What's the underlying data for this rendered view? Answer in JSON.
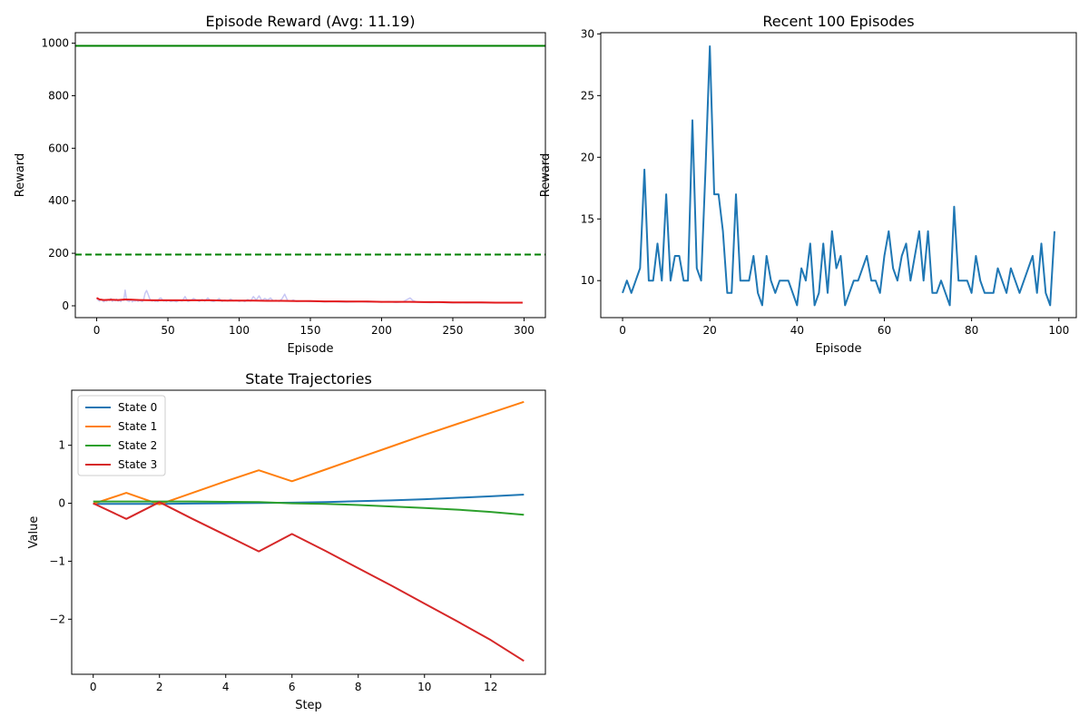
{
  "chart_data": [
    {
      "type": "line",
      "title": "Episode Reward (Avg: 11.19)",
      "xlabel": "Episode",
      "ylabel": "Reward",
      "xlim": [
        -15,
        315
      ],
      "ylim": [
        -45,
        1040
      ],
      "xticks": [
        0,
        50,
        100,
        150,
        200,
        250,
        300
      ],
      "yticks": [
        0,
        200,
        400,
        600,
        800,
        1000
      ],
      "reference_lines": [
        {
          "y": 990,
          "color": "#008000",
          "style": "solid"
        },
        {
          "y": 195,
          "color": "#008000",
          "style": "dashed"
        }
      ],
      "series": [
        {
          "color": "#c8c8f5",
          "x": [
            0,
            1,
            2,
            3,
            4,
            5,
            6,
            7,
            8,
            9,
            10,
            11,
            12,
            13,
            14,
            15,
            16,
            17,
            18,
            19,
            20,
            21,
            22,
            23,
            24,
            25,
            26,
            27,
            28,
            29,
            30,
            31,
            32,
            33,
            34,
            35,
            36,
            37,
            38,
            39,
            40,
            41,
            42,
            43,
            44,
            45,
            46,
            47,
            48,
            49,
            50,
            52,
            54,
            56,
            58,
            60,
            62,
            64,
            66,
            68,
            70,
            72,
            74,
            76,
            78,
            80,
            82,
            84,
            86,
            88,
            90,
            92,
            94,
            96,
            98,
            100,
            102,
            104,
            106,
            108,
            110,
            112,
            114,
            116,
            118,
            120,
            122,
            124,
            126,
            128,
            130,
            132,
            134,
            136,
            138,
            140,
            145,
            150,
            155,
            160,
            165,
            170,
            175,
            180,
            185,
            190,
            195,
            200,
            205,
            210,
            215,
            218,
            220,
            222,
            225,
            230,
            235,
            240,
            245,
            250,
            255,
            260,
            265,
            270,
            275,
            280,
            285,
            290,
            295,
            299
          ],
          "y": [
            30,
            22,
            18,
            25,
            20,
            15,
            22,
            18,
            24,
            20,
            28,
            17,
            22,
            19,
            26,
            18,
            21,
            16,
            24,
            20,
            60,
            22,
            18,
            17,
            25,
            15,
            20,
            18,
            22,
            17,
            21,
            19,
            16,
            24,
            48,
            58,
            45,
            30,
            20,
            18,
            22,
            17,
            19,
            16,
            28,
            30,
            24,
            18,
            20,
            17,
            22,
            16,
            19,
            15,
            21,
            18,
            35,
            17,
            20,
            28,
            22,
            17,
            24,
            18,
            30,
            19,
            16,
            20,
            28,
            17,
            22,
            18,
            26,
            19,
            21,
            17,
            20,
            16,
            24,
            18,
            35,
            22,
            38,
            20,
            28,
            22,
            30,
            19,
            21,
            17,
            26,
            44,
            20,
            18,
            22,
            17,
            18,
            16,
            17,
            15,
            16,
            15,
            14,
            15,
            16,
            14,
            15,
            14,
            16,
            13,
            15,
            24,
            30,
            20,
            14,
            13,
            12,
            13,
            12,
            11,
            12,
            11,
            12,
            11,
            12,
            11,
            11,
            12,
            11,
            11
          ]
        },
        {
          "color": "#e31a1c",
          "x": [
            0,
            2,
            5,
            10,
            15,
            20,
            25,
            30,
            40,
            50,
            60,
            70,
            80,
            90,
            100,
            110,
            120,
            130,
            140,
            150,
            160,
            170,
            180,
            190,
            200,
            210,
            220,
            230,
            240,
            250,
            260,
            270,
            280,
            290,
            299
          ],
          "y": [
            30,
            24,
            22,
            23,
            22,
            24,
            23,
            22,
            21,
            21,
            21,
            21,
            21,
            20,
            20,
            20,
            19,
            19,
            18,
            18,
            17,
            17,
            16,
            16,
            15,
            15,
            15,
            14,
            14,
            13,
            13,
            13,
            12,
            12,
            12
          ]
        }
      ]
    },
    {
      "type": "line",
      "title": "Recent 100 Episodes",
      "xlabel": "Episode",
      "ylabel": "Reward",
      "xlim": [
        -5,
        104
      ],
      "ylim": [
        7.0,
        30.1
      ],
      "xticks": [
        0,
        20,
        40,
        60,
        80,
        100
      ],
      "yticks": [
        10,
        15,
        20,
        25,
        30
      ],
      "series": [
        {
          "color": "#1f77b4",
          "x": [
            0,
            1,
            2,
            3,
            4,
            5,
            6,
            7,
            8,
            9,
            10,
            11,
            12,
            13,
            14,
            15,
            16,
            17,
            18,
            19,
            20,
            21,
            22,
            23,
            24,
            25,
            26,
            27,
            28,
            29,
            30,
            31,
            32,
            33,
            34,
            35,
            36,
            37,
            38,
            39,
            40,
            41,
            42,
            43,
            44,
            45,
            46,
            47,
            48,
            49,
            50,
            51,
            52,
            53,
            54,
            55,
            56,
            57,
            58,
            59,
            60,
            61,
            62,
            63,
            64,
            65,
            66,
            67,
            68,
            69,
            70,
            71,
            72,
            73,
            74,
            75,
            76,
            77,
            78,
            79,
            80,
            81,
            82,
            83,
            84,
            85,
            86,
            87,
            88,
            89,
            90,
            91,
            92,
            93,
            94,
            95,
            96,
            97,
            98,
            99
          ],
          "y": [
            9,
            10,
            9,
            10,
            11,
            19,
            10,
            10,
            13,
            10,
            17,
            10,
            12,
            12,
            10,
            10,
            23,
            11,
            10,
            19,
            29,
            17,
            17,
            14,
            9,
            9,
            17,
            10,
            10,
            10,
            12,
            9,
            8,
            12,
            10,
            9,
            10,
            10,
            10,
            9,
            8,
            11,
            10,
            13,
            8,
            9,
            13,
            9,
            14,
            11,
            12,
            8,
            9,
            10,
            10,
            11,
            12,
            10,
            10,
            9,
            12,
            14,
            11,
            10,
            12,
            13,
            10,
            12,
            14,
            10,
            14,
            9,
            9,
            10,
            9,
            8,
            16,
            10,
            10,
            10,
            9,
            12,
            10,
            9,
            9,
            9,
            11,
            10,
            9,
            11,
            10,
            9,
            10,
            11,
            12,
            9,
            13,
            9,
            8,
            14
          ]
        }
      ]
    },
    {
      "type": "line",
      "title": "State Trajectories",
      "xlabel": "Step",
      "ylabel": "Value",
      "xlim": [
        -0.65,
        13.65
      ],
      "ylim": [
        -2.95,
        1.95
      ],
      "xticks": [
        0,
        2,
        4,
        6,
        8,
        10,
        12
      ],
      "yticks": [
        -2,
        -1,
        0,
        1
      ],
      "legend": "upper-left",
      "series": [
        {
          "name": "State 0",
          "color": "#1f77b4",
          "x": [
            0,
            1,
            2,
            3,
            4,
            5,
            6,
            7,
            8,
            9,
            10,
            11,
            12,
            13
          ],
          "y": [
            -0.01,
            -0.01,
            -0.01,
            -0.005,
            0.0,
            0.005,
            0.01,
            0.02,
            0.035,
            0.05,
            0.07,
            0.095,
            0.12,
            0.15
          ]
        },
        {
          "name": "State 1",
          "color": "#ff7f0e",
          "x": [
            0,
            1,
            2,
            3,
            4,
            5,
            6,
            7,
            8,
            9,
            10,
            11,
            12,
            13
          ],
          "y": [
            -0.01,
            0.18,
            -0.02,
            0.18,
            0.38,
            0.57,
            0.38,
            0.58,
            0.78,
            0.98,
            1.18,
            1.37,
            1.56,
            1.75
          ]
        },
        {
          "name": "State 2",
          "color": "#2ca02c",
          "x": [
            0,
            1,
            2,
            3,
            4,
            5,
            6,
            7,
            8,
            9,
            10,
            11,
            12,
            13
          ],
          "y": [
            0.03,
            0.03,
            0.03,
            0.03,
            0.025,
            0.02,
            0.0,
            -0.01,
            -0.03,
            -0.055,
            -0.08,
            -0.11,
            -0.15,
            -0.2
          ]
        },
        {
          "name": "State 3",
          "color": "#d62728",
          "x": [
            0,
            1,
            2,
            3,
            4,
            5,
            6,
            7,
            8,
            9,
            10,
            11,
            12,
            13
          ],
          "y": [
            0.0,
            -0.27,
            0.02,
            -0.27,
            -0.55,
            -0.83,
            -0.53,
            -0.82,
            -1.12,
            -1.42,
            -1.73,
            -2.04,
            -2.36,
            -2.72
          ]
        }
      ]
    }
  ]
}
